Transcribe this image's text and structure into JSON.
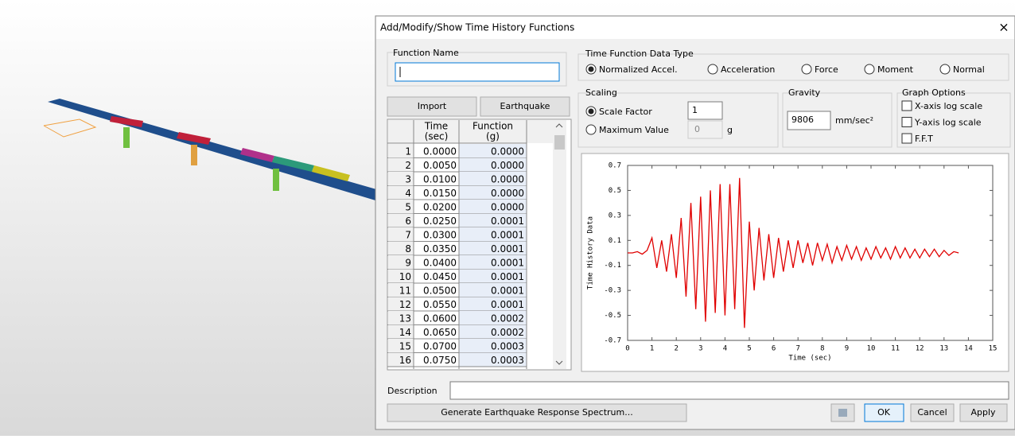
{
  "dialog": {
    "title": "Add/Modify/Show Time History Functions",
    "close": "×"
  },
  "function_name": {
    "label": "Function Name"
  },
  "buttons": {
    "import": "Import",
    "earthquake": "Earthquake",
    "generate": "Generate Earthquake Response Spectrum...",
    "ok": "OK",
    "cancel": "Cancel",
    "apply": "Apply"
  },
  "table": {
    "headers": [
      [
        "Time",
        "(sec)"
      ],
      [
        "Function",
        "(g)"
      ]
    ],
    "rows": [
      [
        "1",
        "0.0000",
        "0.0000"
      ],
      [
        "2",
        "0.0050",
        "0.0000"
      ],
      [
        "3",
        "0.0100",
        "0.0000"
      ],
      [
        "4",
        "0.0150",
        "0.0000"
      ],
      [
        "5",
        "0.0200",
        "0.0000"
      ],
      [
        "6",
        "0.0250",
        "0.0001"
      ],
      [
        "7",
        "0.0300",
        "0.0001"
      ],
      [
        "8",
        "0.0350",
        "0.0001"
      ],
      [
        "9",
        "0.0400",
        "0.0001"
      ],
      [
        "10",
        "0.0450",
        "0.0001"
      ],
      [
        "11",
        "0.0500",
        "0.0001"
      ],
      [
        "12",
        "0.0550",
        "0.0001"
      ],
      [
        "13",
        "0.0600",
        "0.0002"
      ],
      [
        "14",
        "0.0650",
        "0.0002"
      ],
      [
        "15",
        "0.0700",
        "0.0003"
      ],
      [
        "16",
        "0.0750",
        "0.0003"
      ]
    ]
  },
  "data_type": {
    "label": "Time Function Data Type",
    "options": [
      "Normalized Accel.",
      "Acceleration",
      "Force",
      "Moment",
      "Normal"
    ]
  },
  "scaling": {
    "label": "Scaling",
    "scale_factor": "Scale Factor",
    "scale_value": "1",
    "maximum_value": "Maximum Value",
    "max_value": "0",
    "max_unit": "g"
  },
  "gravity": {
    "label": "Gravity",
    "value": "9806",
    "unit": "mm/sec²"
  },
  "graph_options": {
    "label": "Graph Options",
    "options": [
      "X-axis log scale",
      "Y-axis log scale",
      "F.F.T"
    ]
  },
  "description": {
    "label": "Description"
  },
  "chart_data": {
    "type": "line",
    "x_label": "Time (sec)",
    "y_label": "Time History Data",
    "xlim": [
      0,
      15
    ],
    "xticks": [
      0,
      1,
      2,
      3,
      4,
      5,
      6,
      7,
      8,
      9,
      10,
      11,
      12,
      13,
      14,
      15
    ],
    "ylim": [
      -0.7,
      0.7
    ],
    "yticks": [
      0.7,
      0.5,
      0.3,
      0.1,
      -0.1,
      -0.3,
      -0.5,
      -0.7
    ],
    "grid": false,
    "x": [
      0,
      0.2,
      0.4,
      0.6,
      0.8,
      1.0,
      1.2,
      1.4,
      1.6,
      1.8,
      2.0,
      2.2,
      2.4,
      2.6,
      2.8,
      3.0,
      3.2,
      3.4,
      3.6,
      3.8,
      4.0,
      4.2,
      4.4,
      4.6,
      4.8,
      5.0,
      5.2,
      5.4,
      5.6,
      5.8,
      6.0,
      6.2,
      6.4,
      6.6,
      6.8,
      7.0,
      7.2,
      7.4,
      7.6,
      7.8,
      8.0,
      8.2,
      8.4,
      8.6,
      8.8,
      9.0,
      9.2,
      9.4,
      9.6,
      9.8,
      10.0,
      10.2,
      10.4,
      10.6,
      10.8,
      11.0,
      11.2,
      11.4,
      11.6,
      11.8,
      12.0,
      12.2,
      12.4,
      12.6,
      12.8,
      13.0,
      13.2,
      13.4,
      13.6
    ],
    "series": [
      {
        "color": "#e00000",
        "values": [
          0,
          0,
          0.01,
          -0.01,
          0.02,
          0.12,
          -0.12,
          0.1,
          -0.15,
          0.15,
          -0.2,
          0.28,
          -0.35,
          0.4,
          -0.45,
          0.45,
          -0.55,
          0.5,
          -0.48,
          0.55,
          -0.5,
          0.55,
          -0.45,
          0.6,
          -0.6,
          0.25,
          -0.3,
          0.2,
          -0.22,
          0.15,
          -0.2,
          0.12,
          -0.15,
          0.1,
          -0.12,
          0.1,
          -0.08,
          0.08,
          -0.1,
          0.08,
          -0.06,
          0.07,
          -0.08,
          0.05,
          -0.06,
          0.06,
          -0.05,
          0.05,
          -0.06,
          0.04,
          -0.05,
          0.05,
          -0.04,
          0.04,
          -0.05,
          0.05,
          -0.04,
          0.04,
          -0.04,
          0.03,
          -0.04,
          0.03,
          -0.03,
          0.03,
          -0.03,
          0.02,
          -0.02,
          0.01,
          0
        ]
      }
    ]
  }
}
